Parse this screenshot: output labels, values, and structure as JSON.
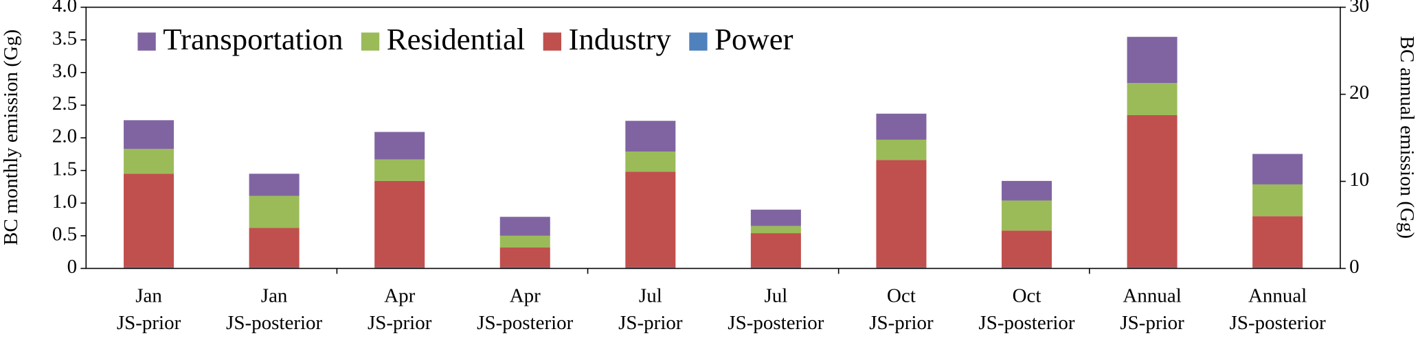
{
  "chart_data": {
    "type": "stacked-bar",
    "ylabel": "BC monthly emission (Gg)",
    "y2label": "BC annual emission (Gg)",
    "categories": [
      [
        "Jan",
        "JS-prior"
      ],
      [
        "Jan",
        "JS-posterior"
      ],
      [
        "Apr",
        "JS-prior"
      ],
      [
        "Apr",
        "JS-posterior"
      ],
      [
        "Jul",
        "JS-prior"
      ],
      [
        "Jul",
        "JS-posterior"
      ],
      [
        "Oct",
        "JS-prior"
      ],
      [
        "Oct",
        "JS-posterior"
      ],
      [
        "Annual",
        "JS-prior"
      ],
      [
        "Annual",
        "JS-posterior"
      ]
    ],
    "series": [
      {
        "name": "Power",
        "color": "#4f81bd",
        "values": [
          0.02,
          0.02,
          0.02,
          0.02,
          0.02,
          0.02,
          0.02,
          0.02,
          null,
          null
        ],
        "y2_values": [
          null,
          null,
          null,
          null,
          null,
          null,
          null,
          null,
          0.15,
          0.15
        ]
      },
      {
        "name": "Industry",
        "color": "#c0504d",
        "values": [
          1.43,
          0.6,
          1.32,
          0.3,
          1.46,
          0.52,
          1.64,
          0.56,
          null,
          null
        ],
        "y2_values": [
          null,
          null,
          null,
          null,
          null,
          null,
          null,
          null,
          17.45,
          5.85
        ]
      },
      {
        "name": "Residential",
        "color": "#9bbb59",
        "values": [
          0.38,
          0.49,
          0.33,
          0.18,
          0.31,
          0.11,
          0.31,
          0.46,
          null,
          null
        ],
        "y2_values": [
          null,
          null,
          null,
          null,
          null,
          null,
          null,
          null,
          3.7,
          3.65
        ]
      },
      {
        "name": "Transportation",
        "color": "#8064a2",
        "values": [
          0.44,
          0.34,
          0.42,
          0.29,
          0.47,
          0.25,
          0.4,
          0.3,
          null,
          null
        ],
        "y2_values": [
          null,
          null,
          null,
          null,
          null,
          null,
          null,
          null,
          5.3,
          3.5
        ]
      }
    ],
    "legend_order": [
      "Transportation",
      "Residential",
      "Industry",
      "Power"
    ],
    "legend": "upper left",
    "ylim": [
      0,
      4.0
    ],
    "yticks": [
      0,
      0.5,
      {
        "value": 1.0,
        "label": "1.0"
      },
      1.5,
      {
        "value": 2.0,
        "label": "2.0"
      },
      2.5,
      {
        "value": 3.0,
        "label": "3.0"
      },
      3.5,
      {
        "value": 4.0,
        "label": "4.0"
      }
    ],
    "y2lim": [
      0,
      30
    ],
    "y2ticks": [
      0,
      10,
      20,
      30
    ]
  }
}
